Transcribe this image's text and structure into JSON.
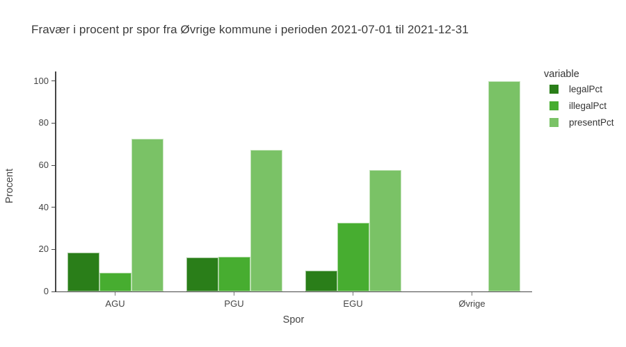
{
  "title": "Fravær i procent pr spor fra Øvrige kommune i perioden 2021-07-01 til 2021-12-31",
  "chart_data": {
    "type": "bar",
    "title": "Fravær i procent pr spor fra Øvrige kommune i perioden 2021-07-01 til 2021-12-31",
    "xlabel": "Spor",
    "ylabel": "Procent",
    "categories": [
      "AGU",
      "PGU",
      "EGU",
      "Øvrige"
    ],
    "series": [
      {
        "name": "legalPct",
        "color": "#2a7e19",
        "values": [
          18.6,
          16.1,
          9.9,
          0
        ]
      },
      {
        "name": "illegalPct",
        "color": "#47ad30",
        "values": [
          8.8,
          16.4,
          32.6,
          0
        ]
      },
      {
        "name": "presentPct",
        "color": "#7ac266",
        "values": [
          72.6,
          67.4,
          57.7,
          100
        ]
      }
    ],
    "ylim": [
      0,
      100
    ],
    "yticks": [
      0,
      20,
      40,
      60,
      80,
      100
    ],
    "legend_title": "variable",
    "legend_position": "right",
    "grid": false,
    "bar_mode": "group"
  },
  "colors": {
    "axis": "#444444",
    "tick_text": "#444444",
    "title_text": "#3b3b3b",
    "background": "#ffffff"
  }
}
